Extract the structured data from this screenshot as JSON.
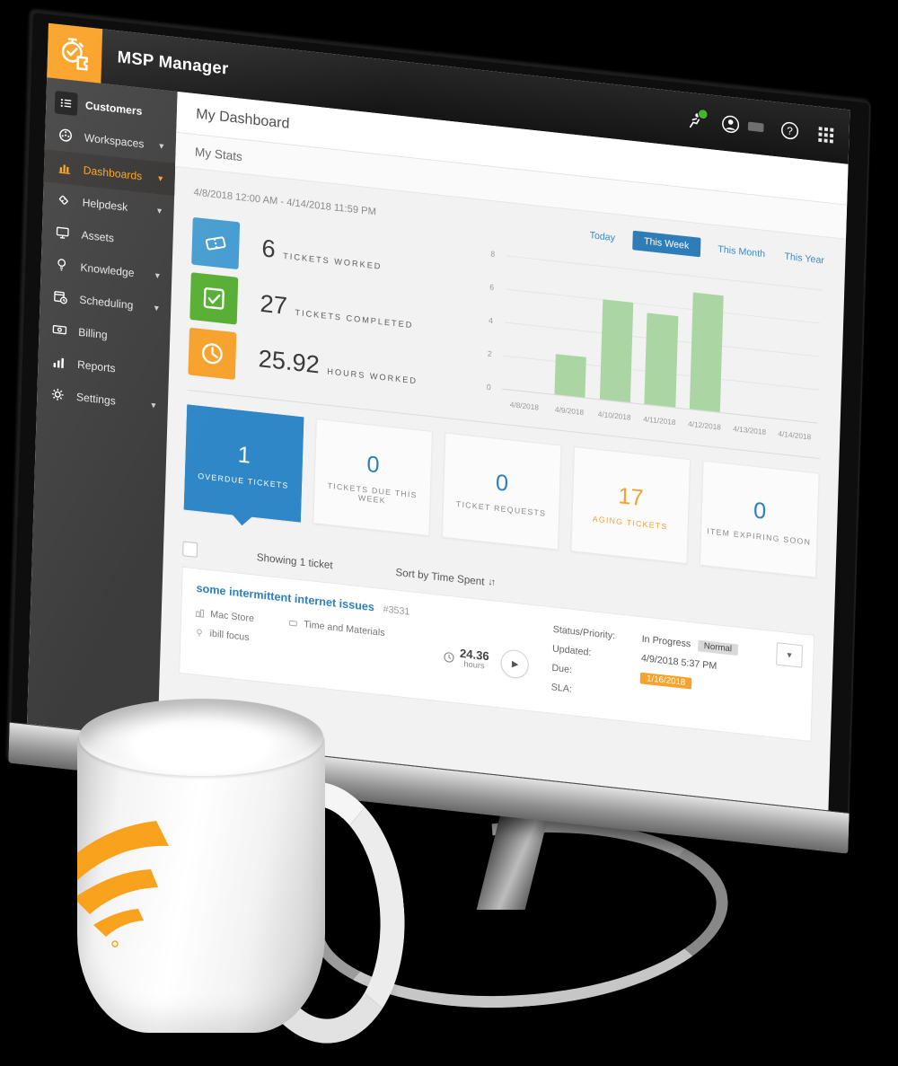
{
  "app": {
    "title": "MSP Manager"
  },
  "topbar": {
    "icons": [
      "activity",
      "account",
      "help",
      "apps-grid"
    ]
  },
  "sidebar": {
    "items": [
      {
        "label": "Customers",
        "icon": "list",
        "caret": false,
        "active": false
      },
      {
        "label": "Workspaces",
        "icon": "globe",
        "caret": true,
        "active": false
      },
      {
        "label": "Dashboards",
        "icon": "bar-chart",
        "caret": true,
        "active": true
      },
      {
        "label": "Helpdesk",
        "icon": "ticket",
        "caret": true,
        "active": false
      },
      {
        "label": "Assets",
        "icon": "monitor",
        "caret": false,
        "active": false
      },
      {
        "label": "Knowledge",
        "icon": "lightbulb",
        "caret": true,
        "active": false
      },
      {
        "label": "Scheduling",
        "icon": "calendar",
        "caret": true,
        "active": false
      },
      {
        "label": "Billing",
        "icon": "banknote",
        "caret": false,
        "active": false
      },
      {
        "label": "Reports",
        "icon": "chart",
        "caret": false,
        "active": false
      },
      {
        "label": "Settings",
        "icon": "gear",
        "caret": true,
        "active": false
      }
    ]
  },
  "page": {
    "title": "My Dashboard",
    "section": "My Stats"
  },
  "stats": {
    "date_range": "4/8/2018 12:00 AM - 4/14/2018 11:59 PM",
    "tabs": [
      "Today",
      "This Week",
      "This Month",
      "This Year"
    ],
    "selected_tab": "This Week",
    "metrics": [
      {
        "value": "6",
        "label": "TICKETS WORKED",
        "icon": "ticket",
        "color": "#459cd0"
      },
      {
        "value": "27",
        "label": "TICKETS COMPLETED",
        "icon": "check",
        "color": "#57ae33"
      },
      {
        "value": "25.92",
        "label": "HOURS WORKED",
        "icon": "clock",
        "color": "#f6a22d"
      }
    ]
  },
  "chart_data": {
    "type": "bar",
    "categories": [
      "4/8/2018",
      "4/9/2018",
      "4/10/2018",
      "4/11/2018",
      "4/12/2018",
      "4/13/2018",
      "4/14/2018"
    ],
    "values": [
      0,
      2.4,
      6,
      5.5,
      7,
      0,
      0
    ],
    "title": "",
    "xlabel": "",
    "ylabel": "",
    "ylim": [
      0,
      8
    ],
    "yticks": [
      "8",
      "6",
      "4",
      "2",
      "0"
    ],
    "grid": true,
    "bar_color": "#abd6a4",
    "legend": "none"
  },
  "cards": [
    {
      "value": "1",
      "label": "OVERDUE TICKETS",
      "selected": true
    },
    {
      "value": "0",
      "label": "TICKETS DUE THIS WEEK",
      "selected": false
    },
    {
      "value": "0",
      "label": "TICKET REQUESTS",
      "selected": false
    },
    {
      "value": "17",
      "label": "AGING TICKETS",
      "selected": false
    },
    {
      "value": "0",
      "label": "ITEM EXPIRING SOON",
      "selected": false
    }
  ],
  "list": {
    "showing": "Showing 1 ticket",
    "sort_label": "Sort by Time Spent"
  },
  "ticket": {
    "title": "some intermittent internet issues",
    "id": "#3531",
    "customer": "Mac Store",
    "billing": "Time and Materials",
    "location": "ibill focus",
    "time_value": "24.36",
    "time_unit": "hours",
    "fields": {
      "status_label": "Status/Priority:",
      "updated_label": "Updated:",
      "due_label": "Due:",
      "sla_label": "SLA:",
      "status": "In Progress",
      "priority": "Normal",
      "updated": "4/9/2018 5:37 PM",
      "due": "1/16/2018",
      "sla": ""
    }
  },
  "colors": {
    "brand_orange": "#f99d1c",
    "accent_blue": "#2e7fbe",
    "selected_card_blue": "#2f87c8",
    "bar_green": "#abd6a4",
    "metric_blue": "#459cd0",
    "metric_green": "#57ae33",
    "metric_orange": "#f6a22d",
    "due_badge_orange": "#f6a22d",
    "priority_badge_gray": "#d9d9d9",
    "sidebar_bg": "#3c3c3c"
  }
}
